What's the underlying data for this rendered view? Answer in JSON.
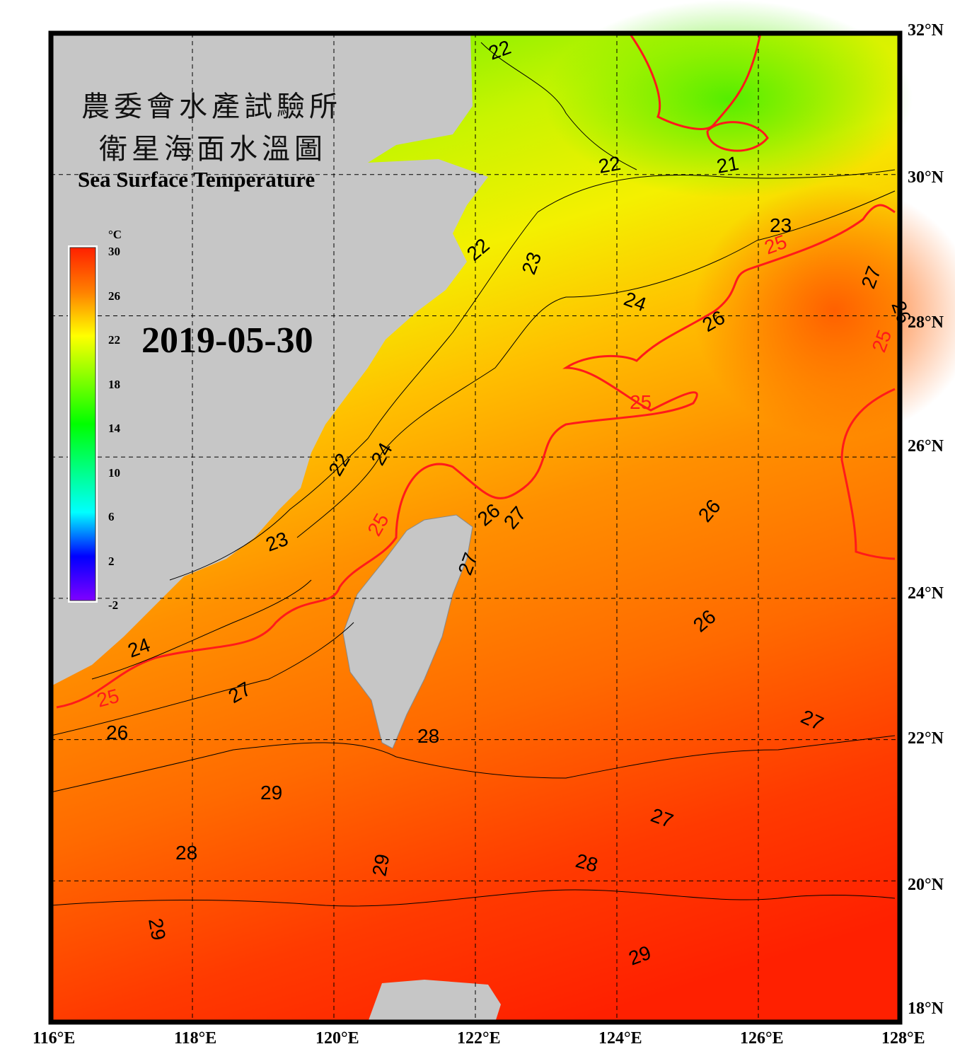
{
  "title": {
    "line1_zh": "農委會水產試驗所",
    "line2_zh": "衛星海面水溫圖",
    "english": "Sea Surface Temperature"
  },
  "date": "2019-05-30",
  "colorbar": {
    "unit": "°C",
    "ticks": [
      "30",
      "26",
      "22",
      "18",
      "14",
      "10",
      "6",
      "2",
      "-2"
    ],
    "range": [
      -2,
      30
    ],
    "colors": [
      "#7f00ff",
      "#0000ff",
      "#00ffff",
      "#00ff80",
      "#00ff00",
      "#80ff00",
      "#ffff00",
      "#ff8000",
      "#ff2000"
    ]
  },
  "axes": {
    "longitude_labels": [
      "116°E",
      "118°E",
      "120°E",
      "122°E",
      "124°E",
      "126°E",
      "128°E"
    ],
    "latitude_labels": [
      "32°N",
      "30°N",
      "28°N",
      "26°N",
      "24°N",
      "22°N",
      "20°N",
      "18°N"
    ],
    "lon_range": [
      116,
      128
    ],
    "lat_range": [
      18,
      32
    ],
    "grid": "dashed"
  },
  "contour_labels": [
    "22",
    "22",
    "21",
    "23",
    "25",
    "22",
    "23",
    "24",
    "26",
    "27",
    "26",
    "25",
    "25",
    "24",
    "22",
    "26",
    "27",
    "25",
    "26",
    "27",
    "23",
    "24",
    "25",
    "26",
    "27",
    "26",
    "27",
    "28",
    "29",
    "28",
    "29",
    "27",
    "28",
    "29",
    "29"
  ],
  "colors": {
    "land": "#c6c6c6",
    "isotherm_25": "#ff1a1a",
    "contour": "#000000",
    "frame": "#000000"
  }
}
